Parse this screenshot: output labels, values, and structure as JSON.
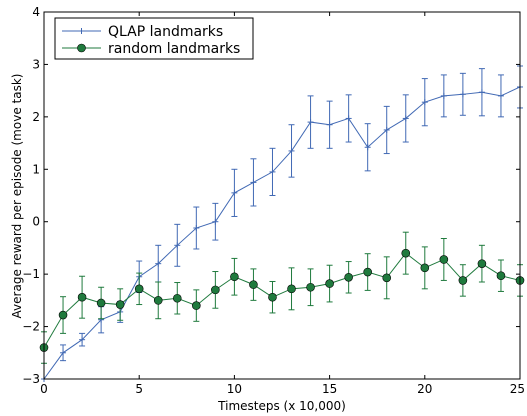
{
  "chart_data": {
    "type": "line",
    "xlabel": "Timesteps (x 10,000)",
    "ylabel": "Average reward per episode (move task)",
    "xlim": [
      0,
      25
    ],
    "ylim": [
      -3,
      4
    ],
    "xticks": [
      "0",
      "5",
      "10",
      "15",
      "20",
      "25"
    ],
    "yticks": [
      "−3",
      "−2",
      "−1",
      "0",
      "1",
      "2",
      "3",
      "4"
    ],
    "grid": false,
    "legend_position": "top-left",
    "x": [
      0,
      1,
      2,
      3,
      4,
      5,
      6,
      7,
      8,
      9,
      10,
      11,
      12,
      13,
      14,
      15,
      16,
      17,
      18,
      19,
      20,
      21,
      22,
      23,
      24,
      25
    ],
    "series": [
      {
        "name": "QLAP landmarks",
        "color": "#4169b4",
        "marker": "plus",
        "values": [
          -3.0,
          -2.5,
          -2.25,
          -1.87,
          -1.72,
          -1.05,
          -0.8,
          -0.45,
          -0.12,
          0.0,
          0.55,
          0.75,
          0.95,
          1.35,
          1.9,
          1.85,
          1.97,
          1.42,
          1.75,
          1.97,
          2.28,
          2.4,
          2.43,
          2.47,
          2.4,
          2.57
        ],
        "errors": [
          0.0,
          0.15,
          0.12,
          0.25,
          0.2,
          0.3,
          0.35,
          0.4,
          0.4,
          0.35,
          0.45,
          0.45,
          0.45,
          0.5,
          0.5,
          0.45,
          0.45,
          0.45,
          0.45,
          0.45,
          0.45,
          0.4,
          0.4,
          0.45,
          0.4,
          0.4
        ]
      },
      {
        "name": "random landmarks",
        "color": "#1f7a3d",
        "marker": "circle",
        "values": [
          -2.4,
          -1.78,
          -1.44,
          -1.55,
          -1.58,
          -1.28,
          -1.5,
          -1.46,
          -1.6,
          -1.3,
          -1.05,
          -1.2,
          -1.44,
          -1.28,
          -1.25,
          -1.18,
          -1.06,
          -0.96,
          -1.07,
          -0.6,
          -0.88,
          -0.72,
          -1.12,
          -0.8,
          -1.03,
          -1.12
        ],
        "errors": [
          0.3,
          0.35,
          0.4,
          0.3,
          0.3,
          0.3,
          0.35,
          0.3,
          0.3,
          0.35,
          0.35,
          0.3,
          0.3,
          0.4,
          0.35,
          0.35,
          0.3,
          0.35,
          0.4,
          0.4,
          0.4,
          0.4,
          0.3,
          0.35,
          0.3,
          0.3
        ]
      }
    ]
  }
}
